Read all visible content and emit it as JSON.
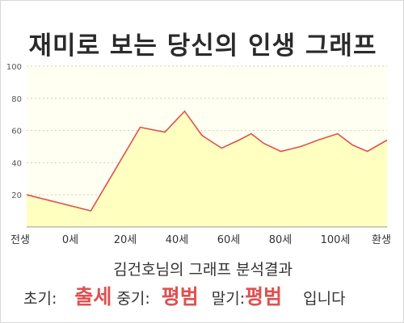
{
  "page_title": "재미로 보는 당신의 인생 그래프",
  "chart_data": {
    "type": "area",
    "title": "재미로 보는 당신의 인생 그래프",
    "x_labels": [
      "전생",
      "0세",
      "20세",
      "40세",
      "60세",
      "80세",
      "100세",
      "환생"
    ],
    "y_ticks": [
      20,
      40,
      60,
      80,
      100
    ],
    "ylim": [
      0,
      100
    ],
    "grid": "horizontal dotted",
    "series": [
      {
        "x": [
          -26,
          0,
          20,
          30,
          38,
          45,
          53,
          60,
          65,
          70,
          77,
          85,
          92,
          100,
          106,
          112,
          120
        ],
        "values": [
          20,
          10,
          62,
          59,
          72,
          57,
          49,
          54,
          58,
          52,
          47,
          50,
          54,
          58,
          51,
          47,
          54
        ]
      }
    ],
    "colors": {
      "line": "#e05050",
      "fill": "#ffffc0",
      "plot_bg": "#fffff2"
    }
  },
  "result": {
    "title": "김건호님의 그래프 분석결과",
    "early_label": "초기:",
    "early_value": "출세",
    "mid_label": "중기:",
    "mid_value": "평범",
    "late_label": "말기:",
    "late_value": "평범",
    "suffix": "입니다",
    "highlight_color": "#e05050"
  }
}
